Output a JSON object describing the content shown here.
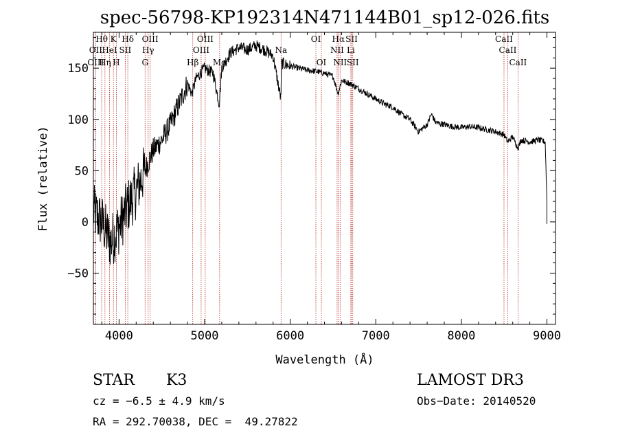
{
  "chart_data": {
    "type": "line",
    "title": "spec-56798-KP192314N471144B01_sp12-026.fits",
    "xlabel": "Wavelength (Å)",
    "ylabel": "Flux (relative)",
    "xlim": [
      3700,
      9100
    ],
    "ylim": [
      -100,
      185
    ],
    "xticks": [
      4000,
      5000,
      6000,
      7000,
      8000,
      9000
    ],
    "yticks": [
      -50,
      0,
      50,
      100,
      150
    ],
    "xtick_labels": [
      "4000",
      "5000",
      "6000",
      "7000",
      "8000",
      "9000"
    ],
    "ytick_labels": [
      "−50",
      "0",
      "50",
      "100",
      "150"
    ],
    "spectrum_anchors": {
      "x": [
        3700,
        3800,
        3900,
        4000,
        4100,
        4200,
        4300,
        4400,
        4500,
        4600,
        4700,
        4800,
        4850,
        4900,
        5000,
        5100,
        5170,
        5200,
        5300,
        5400,
        5500,
        5600,
        5700,
        5800,
        5890,
        5900,
        6000,
        6100,
        6200,
        6300,
        6400,
        6500,
        6560,
        6600,
        6700,
        6800,
        6900,
        7000,
        7100,
        7200,
        7300,
        7400,
        7500,
        7600,
        7650,
        7700,
        7800,
        7900,
        8000,
        8100,
        8200,
        8300,
        8400,
        8500,
        8540,
        8600,
        8660,
        8700,
        8800,
        8900,
        8980,
        9000
      ],
      "y": [
        10,
        0,
        -20,
        -5,
        15,
        30,
        50,
        70,
        80,
        95,
        115,
        135,
        125,
        140,
        150,
        145,
        115,
        150,
        165,
        170,
        168,
        172,
        168,
        162,
        120,
        155,
        152,
        150,
        148,
        147,
        145,
        142,
        125,
        138,
        135,
        130,
        125,
        120,
        115,
        112,
        105,
        100,
        88,
        95,
        105,
        97,
        95,
        93,
        92,
        93,
        92,
        90,
        88,
        85,
        78,
        83,
        72,
        80,
        78,
        80,
        78,
        20
      ]
    },
    "line_markers": [
      {
        "label": "Hθ",
        "x": 3797,
        "row": 1
      },
      {
        "label": "K",
        "x": 3934,
        "row": 1
      },
      {
        "label": "Hδ",
        "x": 4102,
        "row": 1
      },
      {
        "label": "OIII",
        "x": 4363,
        "row": 1
      },
      {
        "label": "OIII",
        "x": 5007,
        "row": 1
      },
      {
        "label": "OI",
        "x": 6300,
        "row": 1
      },
      {
        "label": "Hα",
        "x": 6563,
        "row": 1
      },
      {
        "label": "SII",
        "x": 6717,
        "row": 1
      },
      {
        "label": "CaII",
        "x": 8498,
        "row": 1
      },
      {
        "label": "OII",
        "x": 3727,
        "row": 2
      },
      {
        "label": "HeI",
        "x": 3889,
        "row": 2
      },
      {
        "label": "SII",
        "x": 4072,
        "row": 2
      },
      {
        "label": "Hγ",
        "x": 4340,
        "row": 2
      },
      {
        "label": "OIII",
        "x": 4959,
        "row": 2
      },
      {
        "label": "Na",
        "x": 5893,
        "row": 2
      },
      {
        "label": "NII",
        "x": 6548,
        "row": 2
      },
      {
        "label": "Li",
        "x": 6708,
        "row": 2
      },
      {
        "label": "CaII",
        "x": 8542,
        "row": 2
      },
      {
        "label": "OIII",
        "x": 3727,
        "row": 3
      },
      {
        "label": "Hη",
        "x": 3835,
        "row": 3
      },
      {
        "label": "H",
        "x": 3968,
        "row": 3
      },
      {
        "label": "G",
        "x": 4304,
        "row": 3
      },
      {
        "label": "Hβ",
        "x": 4861,
        "row": 3
      },
      {
        "label": "Mg",
        "x": 5175,
        "row": 3
      },
      {
        "label": "OI",
        "x": 6364,
        "row": 3
      },
      {
        "label": "NII",
        "x": 6583,
        "row": 3
      },
      {
        "label": "SII",
        "x": 6731,
        "row": 3
      },
      {
        "label": "CaII",
        "x": 8662,
        "row": 3
      }
    ],
    "grid": false,
    "legend": "none"
  },
  "footer": {
    "object_class": "STAR",
    "subclass": "K3",
    "survey": "LAMOST DR3",
    "redshift": "cz = −6.5 ± 4.9 km/s",
    "obs_date": "Obs−Date: 20140520",
    "coords": "RA = 292.70038, DEC =  49.27822"
  }
}
